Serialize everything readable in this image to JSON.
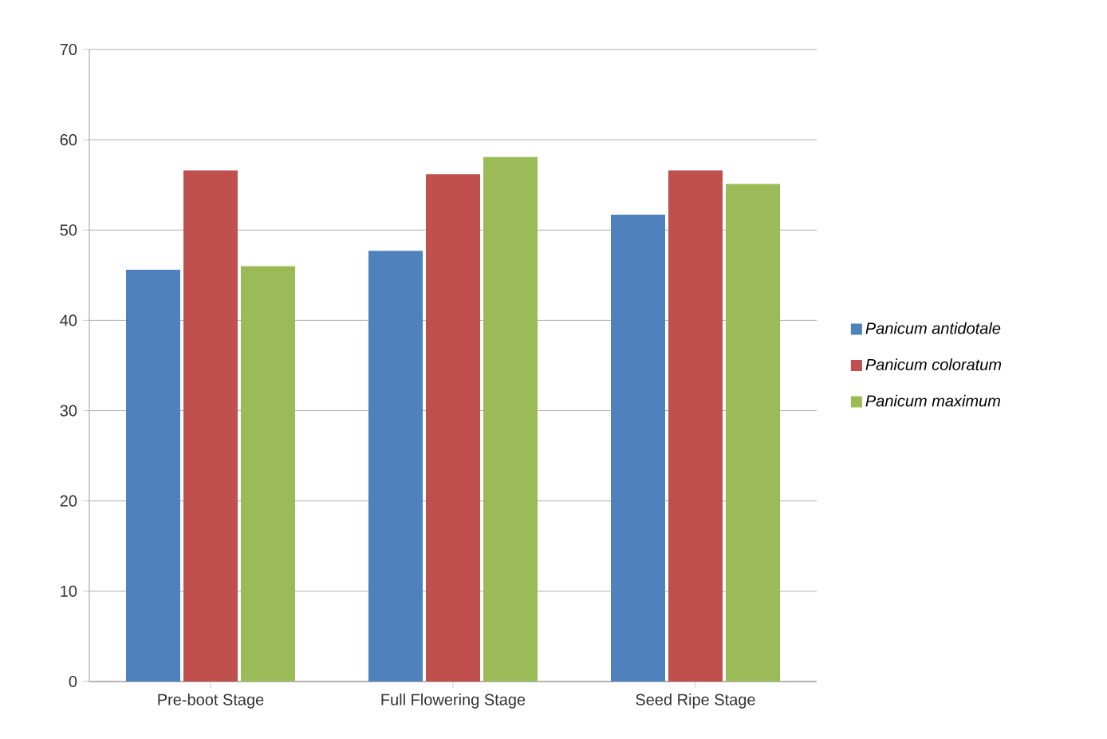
{
  "chart_data": {
    "type": "bar",
    "categories": [
      "Pre-boot Stage",
      "Full Flowering Stage",
      "Seed Ripe Stage"
    ],
    "series": [
      {
        "name": "Panicum antidotale",
        "color": "#4f81bd",
        "values": [
          45.6,
          47.7,
          51.7
        ]
      },
      {
        "name": "Panicum coloratum",
        "color": "#c0504d",
        "values": [
          56.6,
          56.2,
          56.6
        ]
      },
      {
        "name": "Panicum maximum",
        "color": "#9bbb59",
        "values": [
          46.0,
          58.1,
          55.1
        ]
      }
    ],
    "ylim": [
      0,
      70
    ],
    "yticks": [
      0,
      10,
      20,
      30,
      40,
      50,
      60,
      70
    ],
    "grid": "y",
    "legend": "right"
  }
}
